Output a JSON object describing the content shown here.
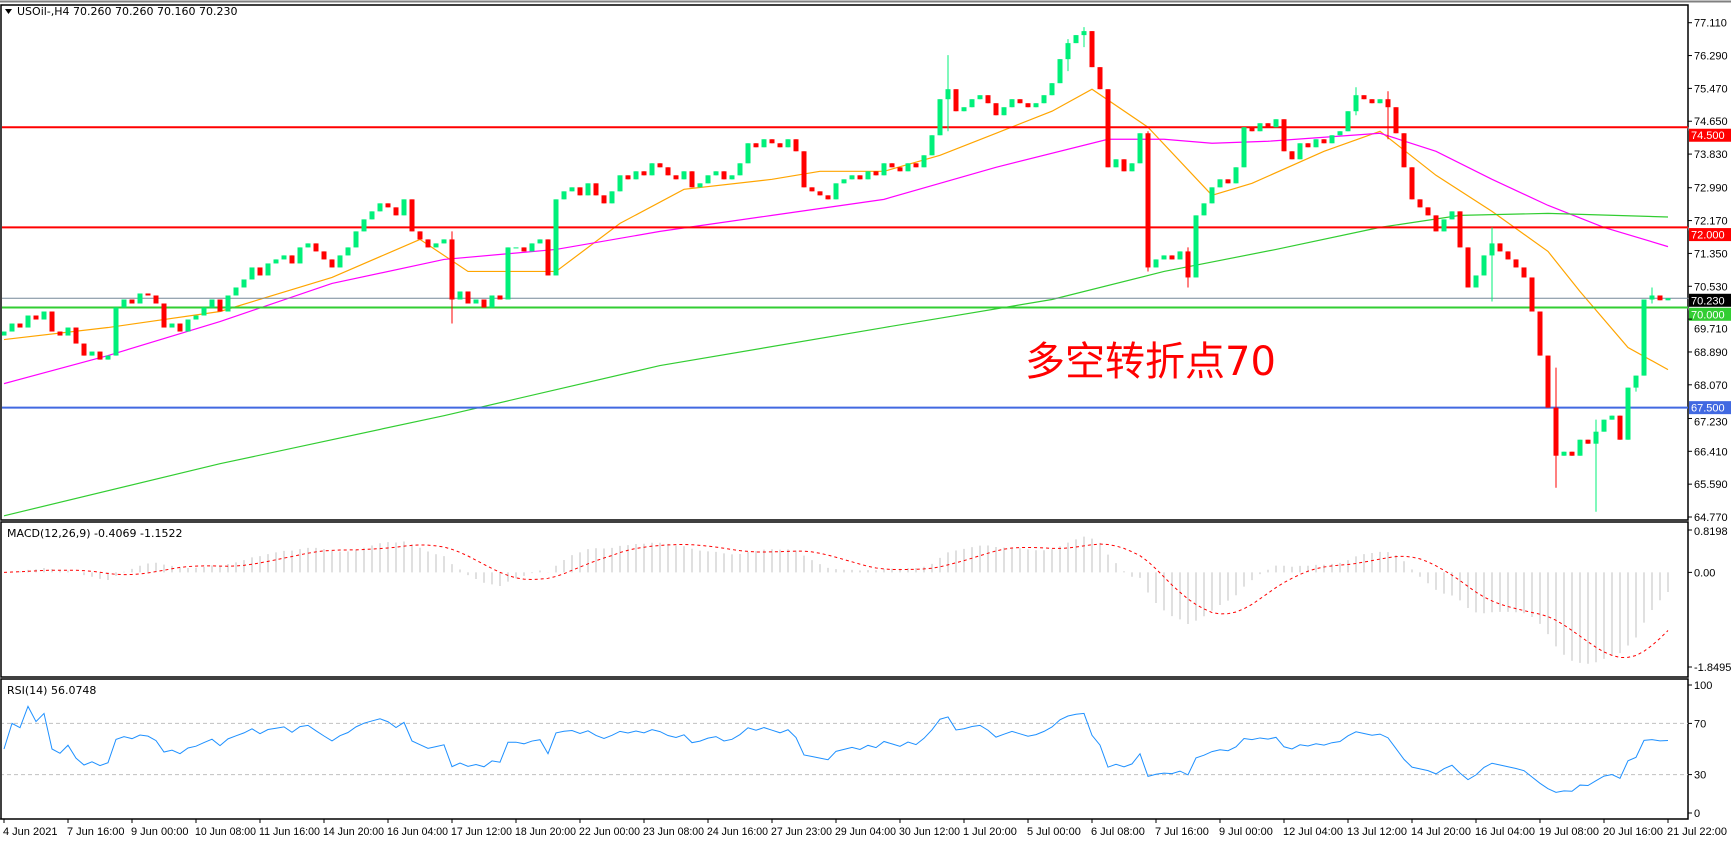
{
  "header": {
    "symbol_line": "USOil-,H4  70.260 70.260 70.160 70.230"
  },
  "annotation": {
    "text": "多空转折点70",
    "color": "#ff0000"
  },
  "colors": {
    "bull": "#00f07a",
    "bear": "#ff0000",
    "ma_fast": "#ffa500",
    "ma_mid": "#ff00ff",
    "ma_slow": "#32cd32",
    "macd_hist": "#c0c0c0",
    "macd_signal": "#ff0000",
    "rsi": "#1e90ff",
    "grid_level": "#c0c0c0"
  },
  "chart_data": [
    {
      "type": "candlestick",
      "panel": "main",
      "ylim": [
        64.77,
        77.11
      ],
      "y_ticks": [
        "77.110",
        "76.290",
        "75.470",
        "74.650",
        "73.830",
        "72.990",
        "72.170",
        "71.350",
        "70.530",
        "69.710",
        "68.890",
        "68.070",
        "67.230",
        "66.410",
        "65.590",
        "64.770"
      ],
      "x_ticks": [
        {
          "bar": 0,
          "label": "4 Jun 2021"
        },
        {
          "bar": 8,
          "label": "7 Jun 16:00"
        },
        {
          "bar": 16,
          "label": "9 Jun 00:00"
        },
        {
          "bar": 24,
          "label": "10 Jun 08:00"
        },
        {
          "bar": 32,
          "label": "11 Jun 16:00"
        },
        {
          "bar": 40,
          "label": "14 Jun 20:00"
        },
        {
          "bar": 48,
          "label": "16 Jun 04:00"
        },
        {
          "bar": 56,
          "label": "17 Jun 12:00"
        },
        {
          "bar": 64,
          "label": "18 Jun 20:00"
        },
        {
          "bar": 72,
          "label": "22 Jun 00:00"
        },
        {
          "bar": 80,
          "label": "23 Jun 08:00"
        },
        {
          "bar": 88,
          "label": "24 Jun 16:00"
        },
        {
          "bar": 96,
          "label": "27 Jun 23:00"
        },
        {
          "bar": 104,
          "label": "29 Jun 04:00"
        },
        {
          "bar": 112,
          "label": "30 Jun 12:00"
        },
        {
          "bar": 120,
          "label": "1 Jul 20:00"
        },
        {
          "bar": 128,
          "label": "5 Jul 00:00"
        },
        {
          "bar": 136,
          "label": "6 Jul 08:00"
        },
        {
          "bar": 144,
          "label": "7 Jul 16:00"
        },
        {
          "bar": 152,
          "label": "9 Jul 00:00"
        },
        {
          "bar": 160,
          "label": "12 Jul 04:00"
        },
        {
          "bar": 168,
          "label": "13 Jul 12:00"
        },
        {
          "bar": 176,
          "label": "14 Jul 20:00"
        },
        {
          "bar": 184,
          "label": "16 Jul 04:00"
        },
        {
          "bar": 192,
          "label": "19 Jul 08:00"
        },
        {
          "bar": 200,
          "label": "20 Jul 16:00"
        },
        {
          "bar": 208,
          "label": "21 Jul 22:00"
        }
      ],
      "close": [
        69.4,
        69.6,
        69.5,
        69.8,
        69.7,
        69.9,
        69.4,
        69.3,
        69.5,
        69.1,
        68.8,
        68.9,
        68.7,
        68.8,
        70.0,
        70.2,
        70.1,
        70.35,
        70.3,
        70.1,
        69.5,
        69.6,
        69.4,
        69.7,
        69.8,
        70.0,
        70.2,
        69.9,
        70.3,
        70.5,
        70.7,
        71.0,
        70.8,
        71.1,
        71.2,
        71.3,
        71.1,
        71.5,
        71.6,
        71.4,
        71.2,
        71.0,
        71.3,
        71.5,
        71.9,
        72.2,
        72.4,
        72.6,
        72.5,
        72.3,
        72.7,
        71.9,
        71.7,
        71.5,
        71.6,
        71.7,
        70.2,
        70.4,
        70.1,
        70.2,
        70.0,
        70.3,
        70.2,
        71.5,
        71.5,
        71.4,
        71.6,
        71.7,
        70.8,
        72.7,
        72.9,
        73.0,
        72.8,
        73.1,
        72.8,
        72.6,
        72.9,
        73.3,
        73.2,
        73.4,
        73.3,
        73.6,
        73.5,
        73.3,
        73.2,
        73.4,
        73.0,
        73.1,
        73.3,
        73.4,
        73.2,
        73.3,
        73.6,
        74.1,
        74.0,
        74.2,
        74.1,
        74.0,
        74.2,
        73.9,
        73.0,
        72.9,
        72.8,
        72.7,
        73.1,
        73.2,
        73.3,
        73.2,
        73.4,
        73.3,
        73.6,
        73.5,
        73.4,
        73.6,
        73.5,
        73.8,
        74.3,
        75.2,
        75.45,
        74.9,
        75.0,
        75.2,
        75.3,
        75.1,
        74.8,
        75.0,
        75.2,
        75.1,
        75.0,
        75.1,
        75.3,
        75.6,
        76.2,
        76.6,
        76.8,
        76.9,
        76.0,
        75.45,
        73.5,
        73.7,
        73.4,
        73.6,
        74.35,
        71.0,
        71.2,
        71.3,
        71.2,
        71.4,
        70.75,
        72.3,
        72.6,
        73.0,
        73.2,
        73.1,
        73.5,
        74.5,
        74.4,
        74.6,
        74.5,
        74.7,
        73.9,
        73.7,
        74.1,
        74.0,
        74.2,
        74.1,
        74.3,
        74.4,
        74.9,
        75.3,
        75.2,
        75.1,
        75.2,
        75.0,
        74.35,
        73.5,
        72.7,
        72.5,
        72.3,
        71.9,
        72.2,
        72.4,
        71.5,
        70.5,
        70.8,
        71.3,
        71.6,
        71.4,
        71.2,
        71.0,
        70.75,
        69.9,
        68.8,
        67.5,
        66.3,
        66.4,
        66.3,
        66.7,
        66.6,
        66.9,
        67.2,
        67.3,
        66.7,
        68.0,
        68.3,
        70.2,
        70.3,
        70.18,
        70.23
      ],
      "wicks": [
        [
          56,
          71.9,
          69.6
        ],
        [
          118,
          76.3,
          74.4
        ],
        [
          133,
          76.7,
          75.9
        ],
        [
          135,
          77.0,
          76.5
        ],
        [
          143,
          74.4,
          70.9
        ],
        [
          148,
          71.5,
          70.5
        ],
        [
          169,
          75.5,
          74.8
        ],
        [
          173,
          75.4,
          74.2
        ],
        [
          186,
          72.0,
          70.15
        ],
        [
          194,
          68.5,
          65.5
        ],
        [
          199,
          67.2,
          64.9
        ],
        [
          204,
          68.3,
          67.9
        ],
        [
          206,
          70.5,
          70.1
        ]
      ],
      "series": [
        {
          "name": "",
          "role": "ma_fast",
          "points": [
            [
              0,
              69.2
            ],
            [
              13,
              69.5
            ],
            [
              27,
              69.9
            ],
            [
              41,
              70.75
            ],
            [
              52,
              71.7
            ],
            [
              58,
              70.9
            ],
            [
              69,
              70.9
            ],
            [
              77,
              72.1
            ],
            [
              85,
              72.95
            ],
            [
              96,
              73.2
            ],
            [
              102,
              73.4
            ],
            [
              110,
              73.4
            ],
            [
              117,
              73.8
            ],
            [
              124,
              74.35
            ],
            [
              131,
              74.9
            ],
            [
              136,
              75.45
            ],
            [
              143,
              74.5
            ],
            [
              151,
              72.8
            ],
            [
              156,
              73.1
            ],
            [
              165,
              73.9
            ],
            [
              172,
              74.4
            ],
            [
              179,
              73.3
            ],
            [
              186,
              72.4
            ],
            [
              193,
              71.4
            ],
            [
              197,
              70.4
            ],
            [
              203,
              69.0
            ],
            [
              208,
              68.45
            ]
          ]
        },
        {
          "name": "",
          "role": "ma_mid",
          "points": [
            [
              0,
              68.1
            ],
            [
              13,
              68.8
            ],
            [
              27,
              69.65
            ],
            [
              41,
              70.6
            ],
            [
              55,
              71.2
            ],
            [
              69,
              71.45
            ],
            [
              82,
              71.9
            ],
            [
              96,
              72.3
            ],
            [
              110,
              72.7
            ],
            [
              124,
              73.5
            ],
            [
              138,
              74.2
            ],
            [
              145,
              74.2
            ],
            [
              151,
              74.1
            ],
            [
              158,
              74.15
            ],
            [
              172,
              74.35
            ],
            [
              179,
              73.9
            ],
            [
              186,
              73.2
            ],
            [
              193,
              72.55
            ],
            [
              200,
              72.0
            ],
            [
              208,
              71.52
            ]
          ]
        },
        {
          "name": "",
          "role": "ma_slow",
          "points": [
            [
              0,
              64.8
            ],
            [
              27,
              66.1
            ],
            [
              55,
              67.3
            ],
            [
              82,
              68.55
            ],
            [
              110,
              69.5
            ],
            [
              131,
              70.2
            ],
            [
              145,
              70.9
            ],
            [
              159,
              71.45
            ],
            [
              172,
              72.0
            ],
            [
              182,
              72.3
            ],
            [
              193,
              72.35
            ],
            [
              208,
              72.26
            ]
          ]
        }
      ],
      "levels": [
        {
          "value": 74.5,
          "label": "74.500",
          "color": "#ff0000"
        },
        {
          "value": 72.0,
          "label": "72.000",
          "color": "#ff0000"
        },
        {
          "value": 70.0,
          "label": "70.000",
          "color": "#32cd32"
        },
        {
          "value": 67.5,
          "label": "67.500",
          "color": "#4169e1"
        }
      ],
      "current_price": {
        "value": 70.23,
        "label": "70.230"
      }
    },
    {
      "type": "macd",
      "panel": "macd",
      "title": "MACD(12,26,9) -0.4069 -1.1522",
      "ylim": [
        -1.8495,
        0.8198
      ],
      "y_ticks": [
        "0.8198",
        "0.00",
        "-1.8495"
      ]
    },
    {
      "type": "line",
      "panel": "rsi",
      "title": "RSI(14) 56.0748",
      "ylim": [
        0,
        100
      ],
      "y_ticks": [
        "100",
        "70",
        "30",
        "0"
      ],
      "levels": [
        70,
        30
      ]
    }
  ]
}
